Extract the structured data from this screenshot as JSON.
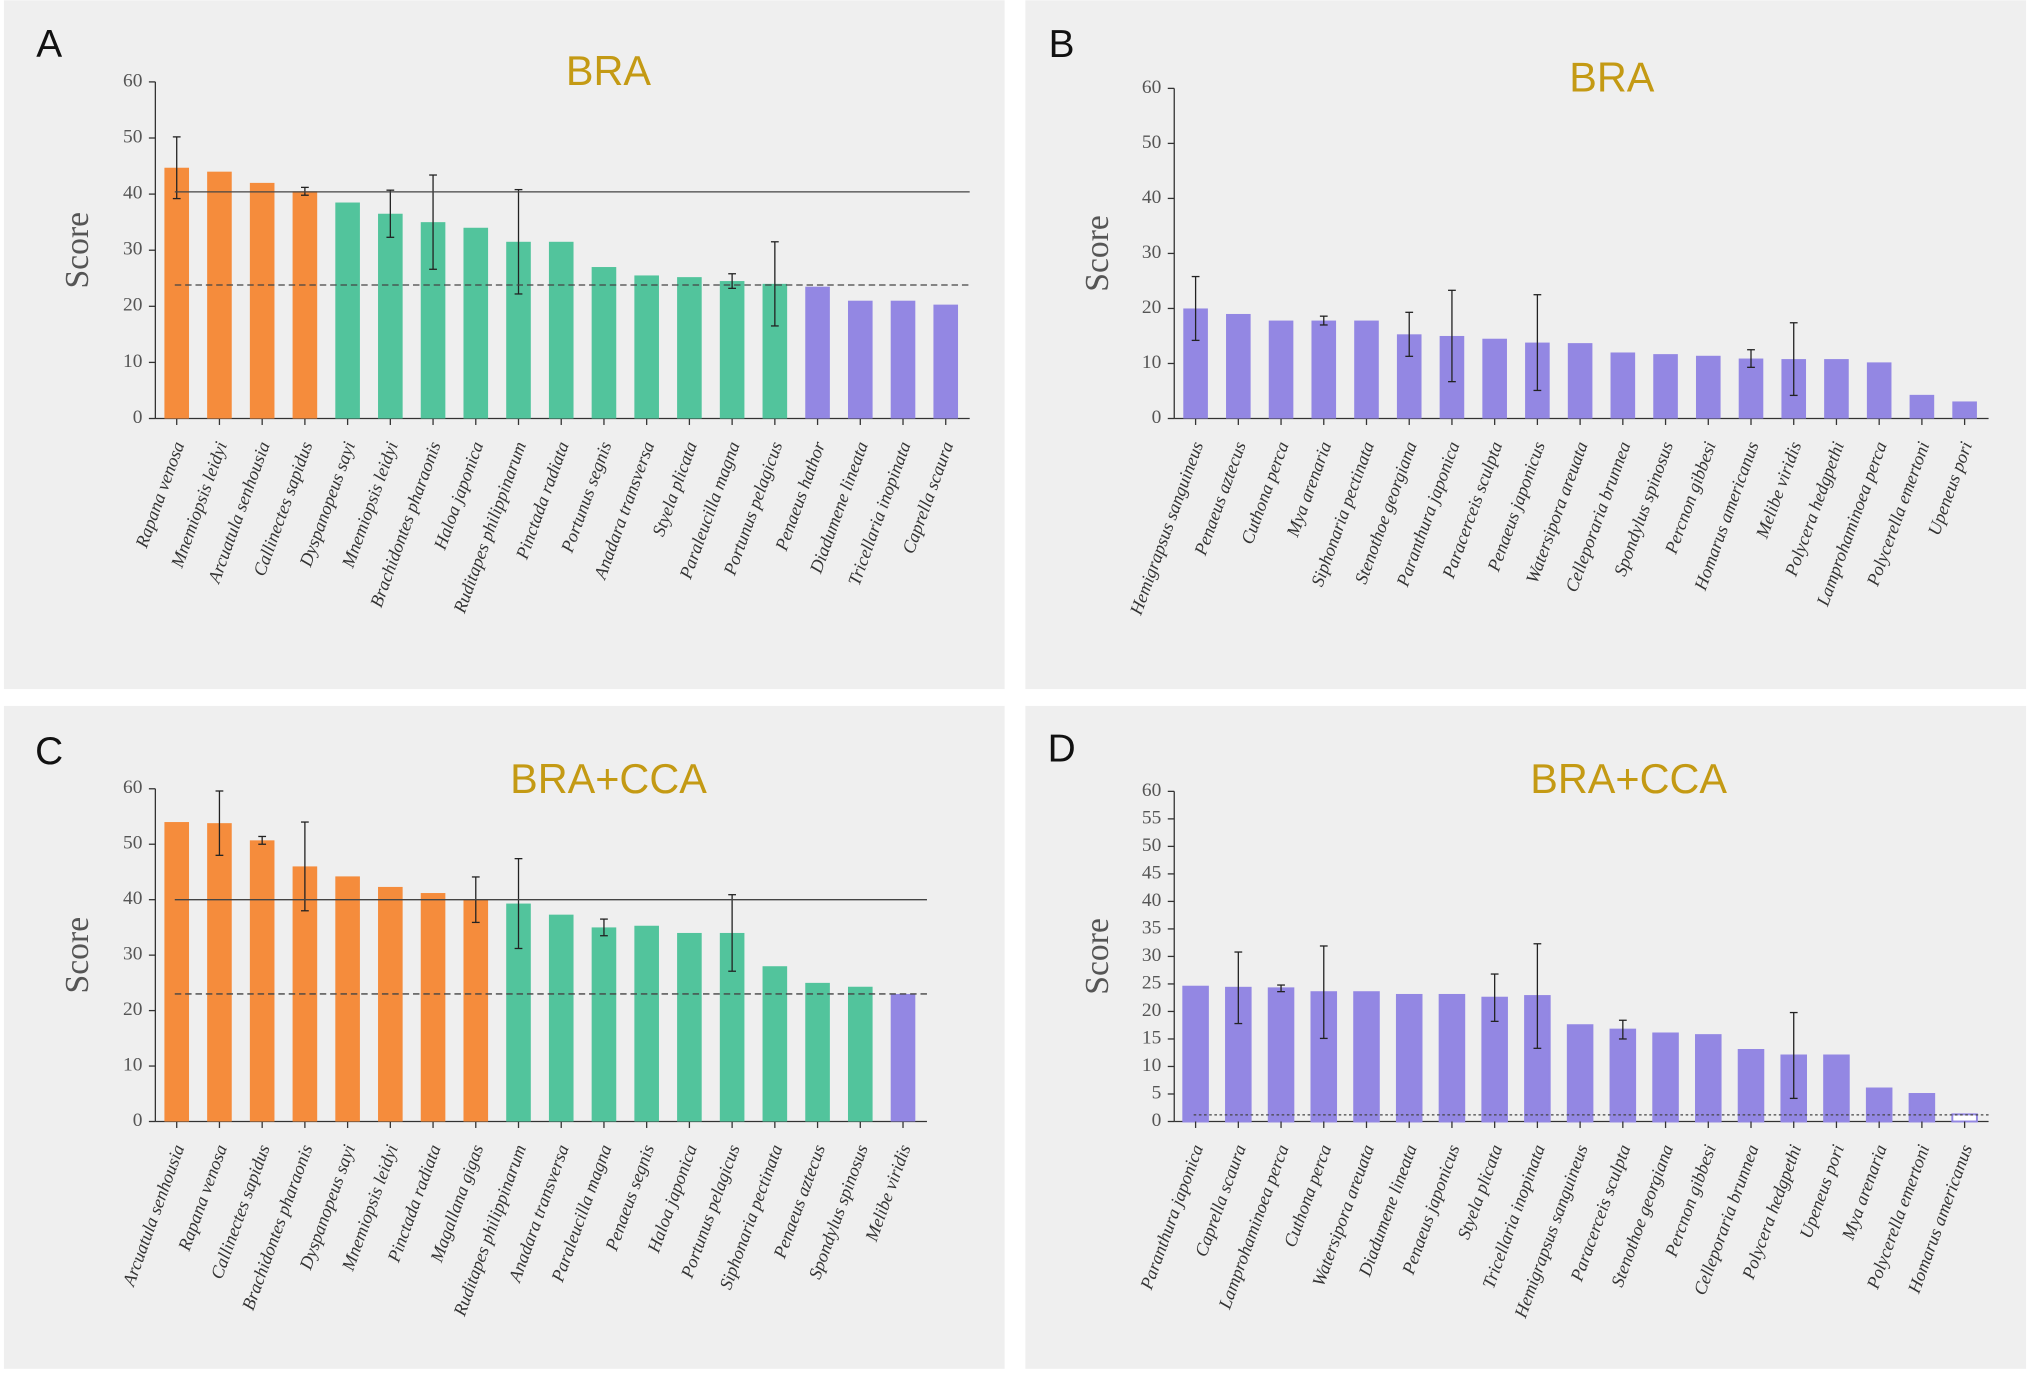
{
  "chart_data": [
    {
      "type": "bar",
      "panel_label": "A",
      "title": "BRA",
      "ylabel": "Score",
      "categories": [
        "Rapana venosa",
        "Mnemiopsis leidyi",
        "Arcuatula senhousia",
        "Callinectes sapidus",
        "Dyspanopeus sayi",
        "Mnemiopsis leidyi",
        "Brachidontes pharaonis",
        "Haloa japonica",
        "Ruditapes philippinarum",
        "Pinctada radiata",
        "Portunus segnis",
        "Anadara transversa",
        "Styela plicata",
        "Paraleucilla magna",
        "Portunus pelagicus",
        "Penaeus hathor",
        "Diadumene lineata",
        "Tricellaria inopinata",
        "Caprella scaura"
      ],
      "values": [
        44.7,
        44,
        42,
        40.5,
        38.5,
        36.5,
        35,
        34,
        31.5,
        31.5,
        27,
        25.5,
        25.2,
        24.5,
        24,
        23.5,
        21,
        21,
        20.3
      ],
      "errors": [
        5.5,
        null,
        null,
        0.7,
        null,
        4.2,
        8.4,
        null,
        9.3,
        null,
        null,
        null,
        null,
        1.3,
        7.5,
        null,
        null,
        null,
        null
      ],
      "colors": [
        "#f58c3c",
        "#f58c3c",
        "#f58c3c",
        "#f58c3c",
        "#52c49c",
        "#52c49c",
        "#52c49c",
        "#52c49c",
        "#52c49c",
        "#52c49c",
        "#52c49c",
        "#52c49c",
        "#52c49c",
        "#52c49c",
        "#52c49c",
        "#9387e3",
        "#9387e3",
        "#9387e3",
        "#9387e3"
      ],
      "ylim": [
        0,
        60
      ],
      "yticks": [
        0,
        10,
        20,
        30,
        40,
        50,
        60
      ],
      "reference_lines": [
        {
          "value": 40.4,
          "style": "solid"
        },
        {
          "value": 23.8,
          "style": "dashed"
        }
      ]
    },
    {
      "type": "bar",
      "panel_label": "B",
      "title": "BRA",
      "ylabel": "Score",
      "categories": [
        "Hemigrapsus sanguineus",
        "Penaeus aztecus",
        "Cuthona perca",
        "Mya arenaria",
        "Siphonaria pectinata",
        "Stenothoe georgiana",
        "Paranthura japonica",
        "Paracerceis sculpta",
        "Penaeus japonicus",
        "Watersipora areuata",
        "Celleporaria brunnea",
        "Spondylus spinosus",
        "Percnon gibbesi",
        "Homarus americanus",
        "Melibe viridis",
        "Polycera hedgpethi",
        "Lamprohaminoea perca",
        "Polycerella emertoni",
        "Upeneus pori"
      ],
      "values": [
        20,
        19,
        17.8,
        17.8,
        17.8,
        15.3,
        15,
        14.5,
        13.8,
        13.7,
        12,
        11.7,
        11.4,
        10.9,
        10.8,
        10.8,
        10.2,
        4.3,
        3.1
      ],
      "errors": [
        5.8,
        null,
        null,
        0.8,
        null,
        4,
        8.3,
        null,
        8.7,
        null,
        null,
        null,
        null,
        1.6,
        6.6,
        null,
        null,
        null,
        null
      ],
      "colors": [
        "#9387e3",
        "#9387e3",
        "#9387e3",
        "#9387e3",
        "#9387e3",
        "#9387e3",
        "#9387e3",
        "#9387e3",
        "#9387e3",
        "#9387e3",
        "#9387e3",
        "#9387e3",
        "#9387e3",
        "#9387e3",
        "#9387e3",
        "#9387e3",
        "#9387e3",
        "#9387e3",
        "#9387e3"
      ],
      "ylim": [
        0,
        60
      ],
      "yticks": [
        0,
        10,
        20,
        30,
        40,
        50,
        60
      ],
      "reference_lines": []
    },
    {
      "type": "bar",
      "panel_label": "C",
      "title": "BRA+CCA",
      "ylabel": "Score",
      "categories": [
        "Arcuatula senhousia",
        "Rapana venosa",
        "Callinectes sapidus",
        "Brachidontes pharaonis",
        "Dyspanopeus sayi",
        "Mnemiopsis leidyi",
        "Pinctada radiata",
        "Magallana gigas",
        "Ruditapes philippinarum",
        "Anadara transversa",
        "Paraleucilla magna",
        "Penaeus segnis",
        "Haloa japonica",
        "Portunus pelagicus",
        "Siphonaria pectinata",
        "Penaeus aztecus",
        "Spondylus spinosus",
        "Melibe viridis"
      ],
      "values": [
        54,
        53.8,
        50.7,
        46,
        44.2,
        42.3,
        41.2,
        40,
        39.3,
        37.3,
        35,
        35.3,
        34,
        34,
        28,
        25,
        24.3,
        23
      ],
      "errors": [
        null,
        5.8,
        0.7,
        8,
        null,
        null,
        null,
        4.1,
        8.1,
        null,
        1.5,
        null,
        null,
        6.9,
        null,
        null,
        null,
        null
      ],
      "colors": [
        "#f58c3c",
        "#f58c3c",
        "#f58c3c",
        "#f58c3c",
        "#f58c3c",
        "#f58c3c",
        "#f58c3c",
        "#f58c3c",
        "#52c49c",
        "#52c49c",
        "#52c49c",
        "#52c49c",
        "#52c49c",
        "#52c49c",
        "#52c49c",
        "#52c49c",
        "#52c49c",
        "#9387e3"
      ],
      "ylim": [
        0,
        60
      ],
      "yticks": [
        0,
        10,
        20,
        30,
        40,
        50,
        60
      ],
      "reference_lines": [
        {
          "value": 40,
          "style": "solid"
        },
        {
          "value": 23,
          "style": "dashed"
        }
      ]
    },
    {
      "type": "bar",
      "panel_label": "D",
      "title": "BRA+CCA",
      "ylabel": "Score",
      "edgecolor": "#9387e3",
      "categories": [
        "Paranthura japonica",
        "Caprella scaura",
        "Lamprohaminoea perca",
        "Cuthona perca",
        "Watersipora areuata",
        "Diadumene lineata",
        "Penaeus japonicus",
        "Styela plicata",
        "Tricellaria inopinata",
        "Hemigrapsus sanguineus",
        "Paracerceis sculpta",
        "Stenothoe georgiana",
        "Percnon gibbesi",
        "Celleporaria brunnea",
        "Polycera hedgpethi",
        "Upeneus pori",
        "Mya arenaria",
        "Polycerella emertoni",
        "Homarus americanus"
      ],
      "values": [
        24.5,
        24.3,
        24.2,
        23.5,
        23.5,
        23,
        23,
        22.5,
        22.8,
        17.5,
        16.7,
        16,
        15.7,
        13,
        12,
        12,
        6,
        5,
        1.3
      ],
      "errors": [
        null,
        6.5,
        0.6,
        8.4,
        null,
        null,
        null,
        4.3,
        9.5,
        null,
        1.7,
        null,
        null,
        null,
        7.8,
        null,
        null,
        null,
        null
      ],
      "colors": [
        "#9387e3",
        "#9387e3",
        "#9387e3",
        "#9387e3",
        "#9387e3",
        "#9387e3",
        "#9387e3",
        "#9387e3",
        "#9387e3",
        "#9387e3",
        "#9387e3",
        "#9387e3",
        "#9387e3",
        "#9387e3",
        "#9387e3",
        "#9387e3",
        "#9387e3",
        "#9387e3",
        "#ffffff"
      ],
      "ylim": [
        0,
        60
      ],
      "yticks": [
        0,
        5,
        10,
        15,
        20,
        25,
        30,
        35,
        40,
        45,
        50,
        55,
        60
      ],
      "reference_lines": [
        {
          "value": 1.2,
          "style": "dotted"
        }
      ]
    }
  ]
}
